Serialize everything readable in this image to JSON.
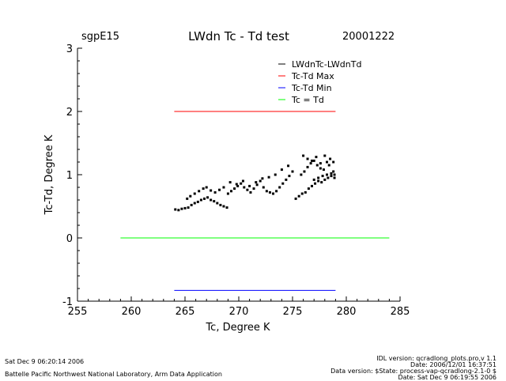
{
  "header": {
    "site": "sgpE15",
    "title": "LWdn Tc - Td test",
    "date": "20001222"
  },
  "footer": {
    "left_line1": "Sat Dec  9 06:20:14 2006",
    "left_line2": "Battelle Pacific Northwest National Laboratory, Arm Data Application",
    "right_line1": "IDL version: qcradlong_plots.pro,v 1.1",
    "right_line2": "Date: 2006/12/01 16:37:51",
    "right_line3": "Data version: $State: process-vap-qcradlong-2.1-0 $",
    "right_line4": "Date: Sat Dec  9 06:19:55 2006"
  },
  "chart_data": {
    "type": "scatter",
    "xlabel": "Tc, Degree K",
    "ylabel": "Tc-Td, Degree K",
    "xlim": [
      255,
      285
    ],
    "ylim": [
      -1,
      3
    ],
    "xticks": [
      "255",
      "260",
      "265",
      "270",
      "275",
      "280",
      "285"
    ],
    "yticks": [
      "-1",
      "0",
      "1",
      "2",
      "3"
    ],
    "legend_position": "top-right",
    "colors": {
      "points": "#000000",
      "max": "#ff0000",
      "min": "#0000ff",
      "equal": "#00ff00"
    },
    "series": [
      {
        "name": "LWdnTc-LWdnTd",
        "kind": "points",
        "color": "#000000",
        "x": [
          264.1,
          264.4,
          264.7,
          265.0,
          265.3,
          265.6,
          265.9,
          266.2,
          266.5,
          266.8,
          267.1,
          267.4,
          267.7,
          268.0,
          268.3,
          268.6,
          268.9,
          265.2,
          265.5,
          265.9,
          266.3,
          266.7,
          267.0,
          267.4,
          267.8,
          268.2,
          268.6,
          269.0,
          269.3,
          269.6,
          269.9,
          270.2,
          270.5,
          270.8,
          271.1,
          271.4,
          271.7,
          272.0,
          272.3,
          272.6,
          272.9,
          273.2,
          273.5,
          273.8,
          274.1,
          274.4,
          274.7,
          275.0,
          269.2,
          269.8,
          270.4,
          271.0,
          271.6,
          272.2,
          272.8,
          273.4,
          274.0,
          274.6,
          275.3,
          275.6,
          275.9,
          276.2,
          276.5,
          276.8,
          277.1,
          277.4,
          277.7,
          278.0,
          278.3,
          278.6,
          278.9,
          275.8,
          276.1,
          276.4,
          276.7,
          277.0,
          277.3,
          277.6,
          277.9,
          278.2,
          278.5,
          278.8,
          276.0,
          276.4,
          276.8,
          277.2,
          277.6,
          278.0,
          278.4,
          278.8,
          277.0,
          277.4,
          277.8,
          278.2,
          278.6,
          278.9
        ],
        "y": [
          0.45,
          0.44,
          0.46,
          0.47,
          0.48,
          0.52,
          0.55,
          0.57,
          0.6,
          0.62,
          0.64,
          0.6,
          0.58,
          0.55,
          0.52,
          0.5,
          0.48,
          0.62,
          0.66,
          0.7,
          0.74,
          0.78,
          0.8,
          0.75,
          0.72,
          0.76,
          0.8,
          0.7,
          0.74,
          0.78,
          0.82,
          0.86,
          0.8,
          0.76,
          0.72,
          0.78,
          0.84,
          0.9,
          0.8,
          0.74,
          0.72,
          0.7,
          0.74,
          0.8,
          0.86,
          0.92,
          0.98,
          1.05,
          0.88,
          0.85,
          0.9,
          0.82,
          0.88,
          0.94,
          0.96,
          1.0,
          1.08,
          1.14,
          0.62,
          0.66,
          0.7,
          0.72,
          0.78,
          0.82,
          0.86,
          0.9,
          0.88,
          0.92,
          0.95,
          0.98,
          0.95,
          1.0,
          1.05,
          1.12,
          1.18,
          1.22,
          1.15,
          1.1,
          1.08,
          1.2,
          1.25,
          1.05,
          1.3,
          1.25,
          1.22,
          1.28,
          1.18,
          1.3,
          1.15,
          1.2,
          0.92,
          0.95,
          0.98,
          1.0,
          1.02,
          1.0
        ]
      },
      {
        "name": "Tc-Td Max",
        "kind": "line",
        "color": "#ff0000",
        "x": [
          264,
          279
        ],
        "y": [
          2,
          2
        ]
      },
      {
        "name": "Tc-Td Min",
        "kind": "line",
        "color": "#0000ff",
        "x": [
          264,
          279
        ],
        "y": [
          -0.83,
          -0.83
        ]
      },
      {
        "name": "Tc = Td",
        "kind": "line",
        "color": "#00ff00",
        "x": [
          259,
          284
        ],
        "y": [
          0,
          0
        ]
      }
    ]
  }
}
